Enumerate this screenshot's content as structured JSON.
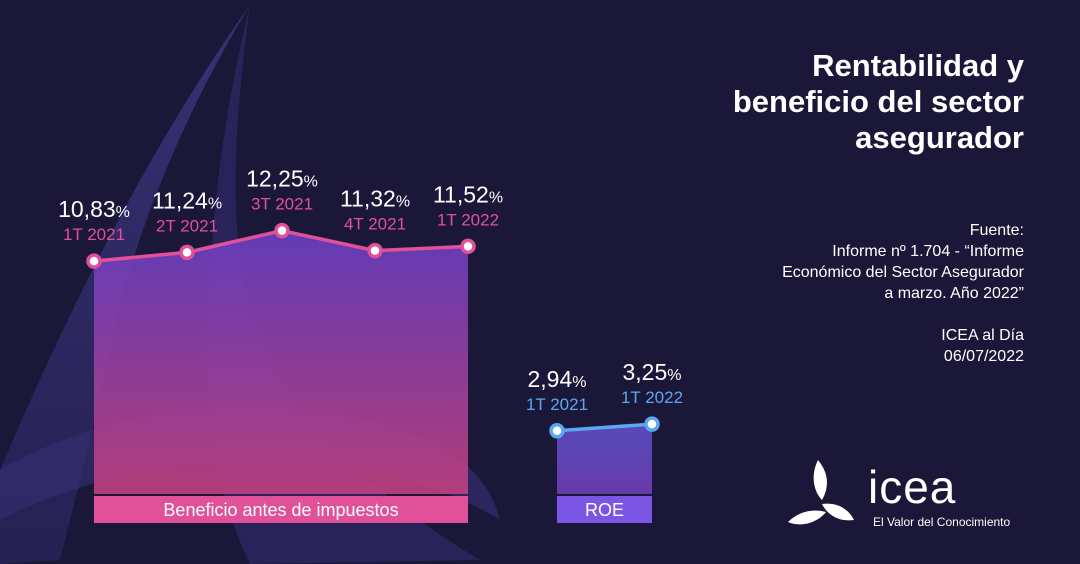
{
  "title_lines": [
    "Rentabilidad y",
    "beneficio del sector",
    "asegurador"
  ],
  "source": {
    "label": "Fuente:",
    "lines": [
      "Informe nº 1.704 - “Informe",
      "Económico del Sector Asegurador",
      "a marzo. Año 2022”"
    ],
    "brand": "ICEA al Día",
    "date": "06/07/2022"
  },
  "logo": {
    "word": "icea",
    "tagline": "El Valor del Conocimiento",
    "icon": "icea-triskele-icon"
  },
  "colors": {
    "background": "#1b1738",
    "beneficio_line": "#e0519a",
    "beneficio_label_bg": "#e0519a",
    "roe_line": "#5aa8f0",
    "roe_label_bg": "#7b56e4",
    "period_text_beneficio": "#e0519a",
    "period_text_roe": "#5aa8f0"
  },
  "chart_data": [
    {
      "type": "area",
      "name": "Beneficio antes de impuestos",
      "categories": [
        "1T 2021",
        "2T 2021",
        "3T 2021",
        "4T 2021",
        "1T 2022"
      ],
      "values": [
        10.83,
        11.24,
        12.25,
        11.32,
        11.52
      ],
      "value_labels": [
        "10,83",
        "11,24",
        "12,25",
        "11,32",
        "11,52"
      ],
      "unit": "%",
      "ylim": [
        0,
        13.91
      ]
    },
    {
      "type": "area",
      "name": "ROE",
      "categories": [
        "1T 2021",
        "1T 2022"
      ],
      "values": [
        2.94,
        3.25
      ],
      "value_labels": [
        "2,94",
        "3,25"
      ],
      "unit": "%",
      "ylim": [
        0,
        13.91
      ]
    }
  ]
}
